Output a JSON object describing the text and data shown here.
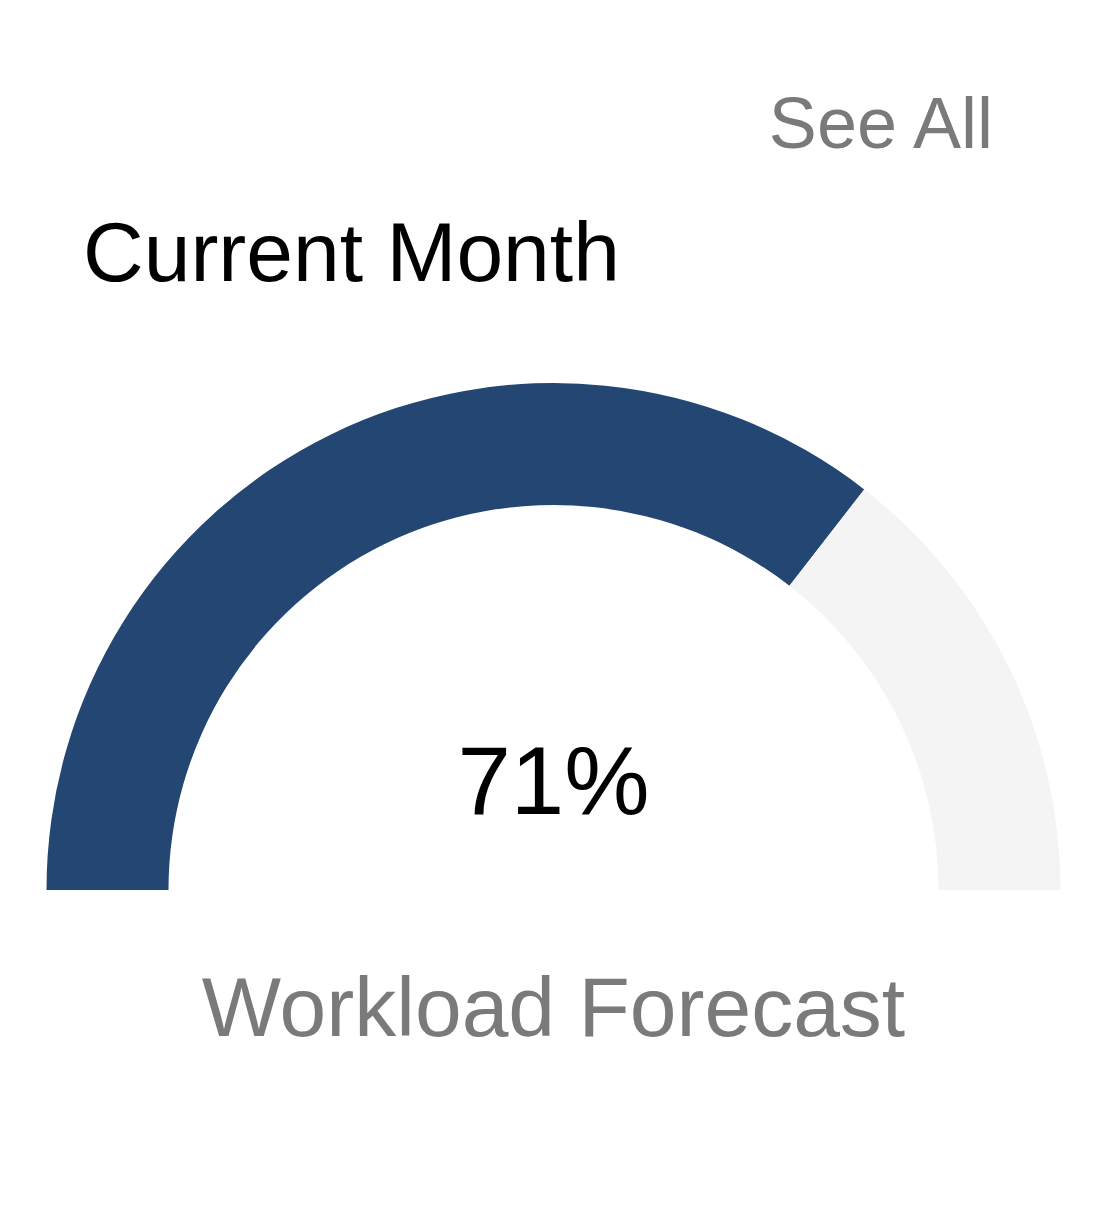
{
  "chart_data": {
    "type": "donut",
    "title": "Current Month",
    "subtitle": "Workload Forecast",
    "annotations": [
      "See All"
    ],
    "categories": [
      null,
      null
    ],
    "values": [
      71,
      29
    ],
    "colors": [
      "#234673",
      "#f4f4f4"
    ],
    "value_labels": [
      "71%",
      null
    ]
  }
}
